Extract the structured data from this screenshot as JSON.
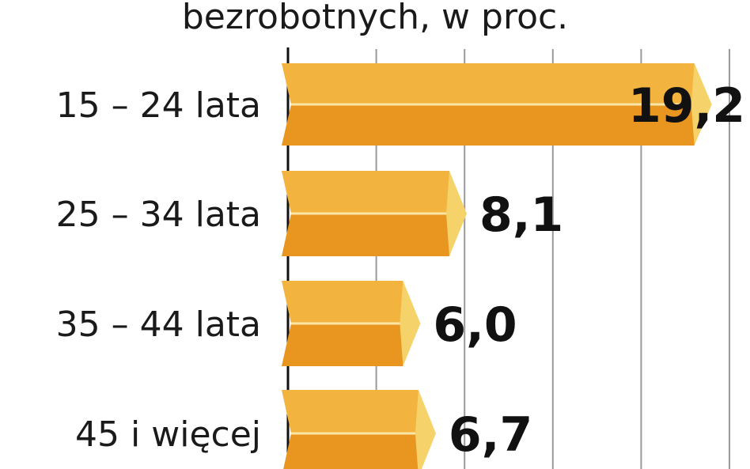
{
  "chart_data": {
    "type": "bar",
    "orientation": "horizontal",
    "title": "bezrobotnych, w proc.",
    "categories": [
      "15 – 24 lata",
      "25 – 34 lata",
      "35 – 44 lata",
      "45 i więcej"
    ],
    "values": [
      19.2,
      8.1,
      6.0,
      6.7
    ],
    "value_labels": [
      "19,2",
      "8,1",
      "6,0",
      "6,7"
    ],
    "xlabel": "",
    "ylabel": "",
    "xlim": [
      0,
      20
    ],
    "grid": true,
    "legend": "none",
    "colors": {
      "bar_top": "#f2b43e",
      "bar_bottom": "#e8961f",
      "bar_tip": "#f6d26a",
      "bar_highlight": "#fbe6a8",
      "grid": "#9a9a9a",
      "axis": "#111111",
      "text": "#1a1a1a"
    }
  }
}
